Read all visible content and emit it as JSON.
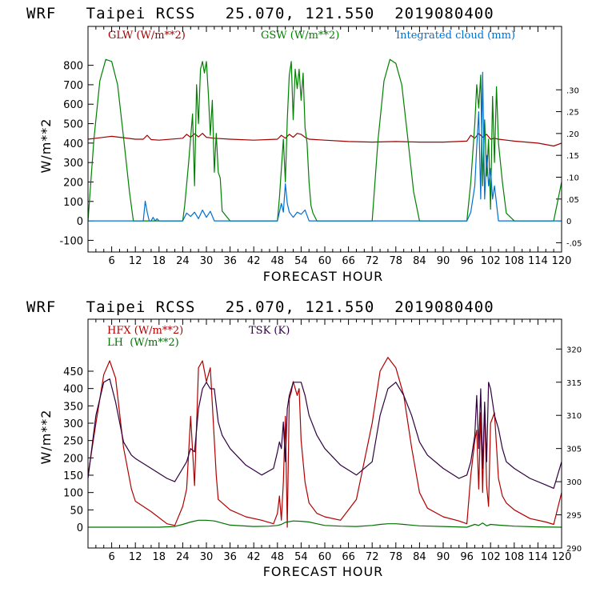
{
  "chart_data": [
    {
      "type": "line",
      "title": "WRF   Taipei RCSS   25.070, 121.550  2019080400",
      "xlabel": "FORECAST HOUR",
      "ylabel": "W/m**2",
      "xlim": [
        0,
        120
      ],
      "ylim": [
        -160,
        1000
      ],
      "y2lim": [
        -0.0712,
        0.4451
      ],
      "xticks": [
        6,
        12,
        18,
        24,
        30,
        36,
        42,
        48,
        54,
        60,
        66,
        72,
        78,
        84,
        90,
        96,
        102,
        108,
        114,
        120
      ],
      "xtick_labels": [
        "6",
        "12",
        "18",
        "24",
        "30",
        "36",
        "42",
        "48",
        "54",
        "60",
        "66",
        "72",
        "78",
        "84",
        "90",
        "96",
        "102",
        "108",
        "114",
        "120"
      ],
      "yticks": [
        -100,
        0,
        100,
        200,
        300,
        400,
        500,
        600,
        700,
        800
      ],
      "ytick_labels": [
        "-100",
        "0",
        "100",
        "200",
        "300",
        "400",
        "500",
        "600",
        "700",
        "800"
      ],
      "y2ticks": [
        -0.05,
        0,
        0.05,
        0.1,
        0.15,
        0.2,
        0.25,
        0.3
      ],
      "y2tick_labels": [
        "-.05",
        "0",
        ".05",
        ".10",
        ".15",
        ".20",
        ".25",
        ".30"
      ],
      "legend": [
        "GLW (W/m**2)",
        "GSW (W/m**2)",
        "Integrated cloud (mm)"
      ],
      "series": [
        {
          "name": "GLW (W/m**2)",
          "color": "#a00000",
          "axis": "left",
          "x": [
            0,
            6,
            12,
            14,
            15,
            16,
            18,
            24,
            25,
            26,
            27,
            28,
            29,
            30,
            32,
            36,
            42,
            48,
            49,
            50,
            51,
            52,
            53,
            54,
            55,
            56,
            60,
            66,
            72,
            78,
            84,
            90,
            96,
            97,
            98,
            99,
            100,
            101,
            102,
            103,
            104,
            108,
            114,
            118,
            120
          ],
          "y": [
            420,
            435,
            420,
            420,
            440,
            418,
            415,
            425,
            445,
            430,
            448,
            432,
            450,
            430,
            425,
            420,
            415,
            420,
            440,
            425,
            445,
            430,
            450,
            445,
            430,
            420,
            415,
            408,
            405,
            408,
            405,
            405,
            410,
            440,
            425,
            450,
            430,
            445,
            420,
            425,
            420,
            410,
            400,
            385,
            400
          ]
        },
        {
          "name": "GSW (W/m**2)",
          "color": "#008000",
          "axis": "left",
          "x": [
            0,
            1.5,
            3,
            4.5,
            6,
            7.5,
            9,
            10.5,
            11.5,
            12,
            24,
            24.5,
            25.5,
            26.5,
            27,
            27.5,
            28,
            28.5,
            29,
            29.5,
            30,
            30.5,
            31,
            31.5,
            32,
            32.5,
            33,
            33.5,
            34,
            36,
            48,
            48.5,
            49.5,
            50,
            50.5,
            51,
            51.5,
            52,
            52.5,
            53,
            53.5,
            54,
            54.5,
            55,
            55.5,
            56,
            56.5,
            57,
            58,
            60,
            72,
            73.5,
            75,
            76.5,
            78,
            79.5,
            81,
            82.5,
            84,
            96,
            97,
            98,
            98.5,
            99,
            99.5,
            100,
            100.5,
            101,
            101.5,
            102,
            102.5,
            103,
            103.5,
            104,
            105,
            106,
            108,
            118,
            120
          ],
          "y": [
            0,
            420,
            720,
            830,
            820,
            700,
            430,
            150,
            0,
            0,
            0,
            80,
            300,
            550,
            180,
            700,
            500,
            780,
            820,
            760,
            820,
            650,
            440,
            620,
            250,
            450,
            250,
            220,
            50,
            0,
            0,
            120,
            420,
            200,
            520,
            750,
            820,
            520,
            780,
            680,
            780,
            620,
            760,
            480,
            400,
            200,
            80,
            40,
            0,
            0,
            0,
            420,
            720,
            830,
            810,
            700,
            430,
            150,
            0,
            0,
            200,
            500,
            700,
            580,
            750,
            180,
            520,
            230,
            420,
            60,
            640,
            300,
            690,
            400,
            200,
            40,
            0,
            0,
            200
          ]
        },
        {
          "name": "Integrated cloud (mm)",
          "color": "#0070d0",
          "axis": "right",
          "x": [
            0,
            14,
            14.5,
            15,
            15.5,
            16,
            16.5,
            17,
            17.5,
            18,
            24,
            25,
            26,
            27,
            28,
            29,
            30,
            31,
            32,
            33,
            36,
            48,
            49,
            49.5,
            50,
            50.5,
            51,
            52,
            53,
            54,
            55,
            56,
            60,
            96,
            97,
            98,
            98.5,
            99,
            99.5,
            100,
            100.5,
            101,
            101.5,
            102,
            102.5,
            103,
            104,
            105,
            120
          ],
          "y": [
            0,
            0,
            0.045,
            0.02,
            0,
            0,
            0.008,
            0,
            0.005,
            0,
            0,
            0.018,
            0.01,
            0.02,
            0.005,
            0.025,
            0.008,
            0.022,
            0,
            0,
            0,
            0,
            0.04,
            0.02,
            0.085,
            0.04,
            0.02,
            0.008,
            0.02,
            0.015,
            0.025,
            0,
            0,
            0,
            0.02,
            0.08,
            0.17,
            0.25,
            0.05,
            0.34,
            0.05,
            0.15,
            0.08,
            0.12,
            0.05,
            0.08,
            0,
            0,
            0
          ]
        }
      ]
    },
    {
      "type": "line",
      "title": "WRF   Taipei RCSS   25.070, 121.550  2019080400",
      "xlabel": "FORECAST HOUR",
      "ylabel": "W/m**2",
      "xlim": [
        0,
        120
      ],
      "ylim": [
        -60,
        600
      ],
      "y2lim": [
        290,
        324.5
      ],
      "xticks": [
        6,
        12,
        18,
        24,
        30,
        36,
        42,
        48,
        54,
        60,
        66,
        72,
        78,
        84,
        90,
        96,
        102,
        108,
        114,
        120
      ],
      "xtick_labels": [
        "6",
        "12",
        "18",
        "24",
        "30",
        "36",
        "42",
        "48",
        "54",
        "60",
        "66",
        "72",
        "78",
        "84",
        "90",
        "96",
        "102",
        "108",
        "114",
        "120"
      ],
      "yticks": [
        0,
        50,
        100,
        150,
        200,
        250,
        300,
        350,
        400,
        450
      ],
      "ytick_labels": [
        "0",
        "50",
        "100",
        "150",
        "200",
        "250",
        "300",
        "350",
        "400",
        "450"
      ],
      "y2ticks": [
        290,
        295,
        300,
        305,
        310,
        315,
        320
      ],
      "y2tick_labels": [
        "290",
        "295",
        "300",
        "305",
        "310",
        "315",
        "320"
      ],
      "legend": [
        "HFX (W/m**2)",
        "LH  (W/m**2)",
        "TSK (K)"
      ],
      "series": [
        {
          "name": "HFX (W/m**2)",
          "color": "#b00000",
          "axis": "left",
          "x": [
            0,
            2,
            4,
            5.5,
            7,
            9,
            11,
            12,
            16,
            20,
            22,
            24,
            25,
            26,
            27,
            28,
            29,
            30,
            31,
            32,
            32.5,
            33,
            36,
            40,
            44,
            47,
            48,
            48.5,
            49,
            49.5,
            50,
            50.5,
            51,
            51.5,
            52,
            53,
            53.5,
            54,
            55,
            56,
            58,
            60,
            64,
            68,
            72,
            74,
            76,
            78,
            80,
            82,
            84,
            86,
            90,
            94,
            96,
            97,
            98,
            98.5,
            99,
            99.5,
            100,
            100.5,
            101,
            101.5,
            102,
            103,
            104,
            105,
            106,
            108,
            112,
            116,
            118,
            120
          ],
          "y": [
            150,
            300,
            440,
            480,
            430,
            230,
            110,
            75,
            45,
            10,
            5,
            60,
            110,
            320,
            120,
            460,
            480,
            420,
            460,
            250,
            150,
            80,
            50,
            30,
            20,
            10,
            40,
            90,
            20,
            130,
            320,
            0,
            370,
            390,
            420,
            380,
            400,
            250,
            130,
            70,
            40,
            30,
            20,
            80,
            300,
            450,
            490,
            460,
            380,
            230,
            100,
            55,
            30,
            18,
            10,
            150,
            250,
            280,
            110,
            330,
            100,
            350,
            120,
            60,
            300,
            330,
            140,
            90,
            70,
            50,
            25,
            15,
            8,
            100
          ]
        },
        {
          "name": "LH  (W/m**2)",
          "color": "#007000",
          "axis": "left",
          "x": [
            0,
            12,
            18,
            22,
            24,
            26,
            28,
            30,
            32,
            34,
            36,
            42,
            46,
            48,
            49,
            50,
            52,
            54,
            56,
            58,
            60,
            64,
            68,
            72,
            74,
            76,
            78,
            80,
            84,
            90,
            96,
            98,
            99,
            100,
            101,
            102,
            104,
            108,
            114,
            120
          ],
          "y": [
            0,
            0,
            0,
            2,
            8,
            15,
            20,
            20,
            18,
            12,
            6,
            2,
            3,
            5,
            8,
            14,
            18,
            17,
            15,
            10,
            5,
            3,
            2,
            5,
            8,
            10,
            10,
            8,
            4,
            2,
            0,
            8,
            5,
            12,
            4,
            8,
            6,
            3,
            1,
            0
          ]
        },
        {
          "name": "TSK (K)",
          "color": "#300040",
          "axis": "right",
          "x": [
            0,
            2,
            4,
            5.5,
            7,
            9,
            11,
            12,
            16,
            20,
            22,
            24,
            25,
            26,
            27,
            28,
            29,
            30,
            31,
            32,
            33,
            34,
            36,
            40,
            44,
            47,
            48,
            48.5,
            49,
            49.5,
            50,
            50.5,
            51,
            51.5,
            52,
            53,
            54,
            55,
            56,
            58,
            60,
            64,
            68,
            72,
            74,
            76,
            78,
            80,
            82,
            84,
            86,
            90,
            94,
            96,
            97,
            98,
            98.5,
            99,
            99.5,
            100,
            100.5,
            101,
            101.5,
            102,
            103,
            104,
            105,
            106,
            108,
            112,
            116,
            118,
            120
          ],
          "y": [
            300.5,
            310,
            315,
            315.5,
            312,
            306,
            304,
            303.5,
            302,
            300.5,
            300,
            302,
            303,
            305,
            304.5,
            311,
            314,
            315,
            314,
            314,
            309,
            307,
            305,
            302.5,
            301,
            302,
            304.5,
            306,
            305,
            309,
            303,
            311,
            313,
            314,
            315,
            315,
            315,
            313,
            310,
            307,
            305,
            302.5,
            301,
            303,
            310,
            314,
            315,
            313,
            310,
            306,
            304,
            302,
            300.5,
            301,
            303,
            307,
            313,
            305,
            314,
            302,
            312,
            303,
            315,
            314,
            310,
            308,
            305,
            303,
            302,
            300.5,
            299.5,
            299,
            303
          ]
        }
      ]
    }
  ]
}
